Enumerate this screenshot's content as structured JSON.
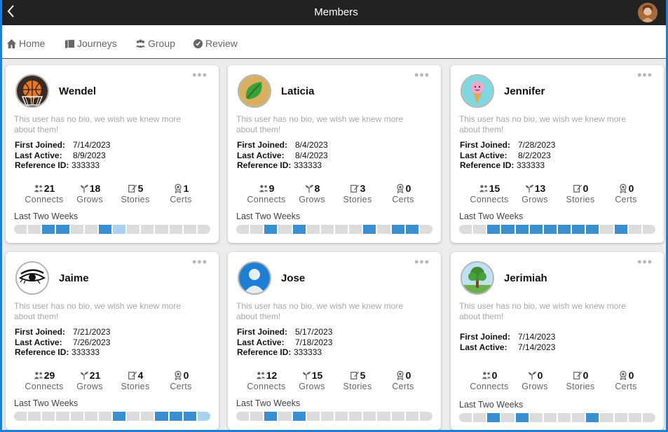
{
  "header": {
    "title": "Members",
    "back_icon": "back-chevron-icon"
  },
  "nav": [
    {
      "label": "Home",
      "icon": "home-icon"
    },
    {
      "label": "Journeys",
      "icon": "journeys-icon"
    },
    {
      "label": "Group",
      "icon": "group-icon"
    },
    {
      "label": "Review",
      "icon": "review-icon"
    }
  ],
  "stat_labels": {
    "connects": "Connects",
    "grows": "Grows",
    "stories": "Stories",
    "certs": "Certs"
  },
  "info_labels": {
    "first_joined": "First Joined:",
    "last_active": "Last Active:",
    "reference_id": "Reference ID:"
  },
  "timeline_label": "Last Two Weeks",
  "colors": {
    "accent": "#3a8fd1",
    "accent_light": "#a9d1f0",
    "inactive": "#dcdcdc",
    "header_bg": "#222222"
  },
  "members": [
    {
      "name": "Wendel",
      "bio": "This user has no bio, we wish we knew more about them!",
      "avatar": "basketball-hoop",
      "first_joined": "7/14/2023",
      "last_active": "8/9/2023",
      "reference_id": "333333",
      "connects": "21",
      "grows": "18",
      "stories": "5",
      "certs": "1",
      "weeks": [
        0,
        0,
        1,
        1,
        0,
        0,
        1,
        2,
        0,
        0,
        0,
        0,
        0,
        0
      ]
    },
    {
      "name": "Laticia",
      "bio": "This user has no bio, we wish we knew more about them!",
      "avatar": "green-leaf",
      "first_joined": "8/4/2023",
      "last_active": "8/4/2023",
      "reference_id": "333333",
      "connects": "9",
      "grows": "8",
      "stories": "3",
      "certs": "0",
      "weeks": [
        0,
        0,
        1,
        0,
        1,
        0,
        0,
        0,
        0,
        1,
        0,
        1,
        1,
        0
      ]
    },
    {
      "name": "Jennifer",
      "bio": "This user has no bio, we wish we knew more about them!",
      "avatar": "ice-cream",
      "first_joined": "7/28/2023",
      "last_active": "8/2/2023",
      "reference_id": "333333",
      "connects": "15",
      "grows": "13",
      "stories": "0",
      "certs": "0",
      "weeks": [
        0,
        0,
        1,
        1,
        1,
        1,
        1,
        1,
        1,
        1,
        0,
        1,
        0,
        0
      ]
    },
    {
      "name": "Jaime",
      "bio": "This user has no bio, we wish we knew more about them!",
      "avatar": "eye",
      "first_joined": "7/21/2023",
      "last_active": "7/26/2023",
      "reference_id": "333333",
      "connects": "29",
      "grows": "21",
      "stories": "4",
      "certs": "0",
      "weeks": [
        0,
        0,
        0,
        0,
        0,
        0,
        0,
        1,
        0,
        0,
        1,
        1,
        1,
        2
      ]
    },
    {
      "name": "Jose",
      "bio": "This user has no bio, we wish we knew more about them!",
      "avatar": "person-silhouette",
      "first_joined": "5/17/2023",
      "last_active": "7/18/2023",
      "reference_id": "333333",
      "connects": "12",
      "grows": "15",
      "stories": "5",
      "certs": "0",
      "weeks": [
        0,
        0,
        1,
        0,
        1,
        0,
        0,
        0,
        0,
        0,
        0,
        0,
        0,
        0
      ]
    },
    {
      "name": "Jerimiah",
      "bio": "This user has no bio, we wish we knew more about them!",
      "avatar": "tree",
      "first_joined": "7/14/2023",
      "last_active": "7/14/2023",
      "reference_id": "",
      "connects": "0",
      "grows": "0",
      "stories": "0",
      "certs": "0",
      "weeks": [
        0,
        0,
        1,
        0,
        1,
        0,
        0,
        0,
        0,
        1,
        0,
        0,
        0,
        0
      ]
    }
  ]
}
